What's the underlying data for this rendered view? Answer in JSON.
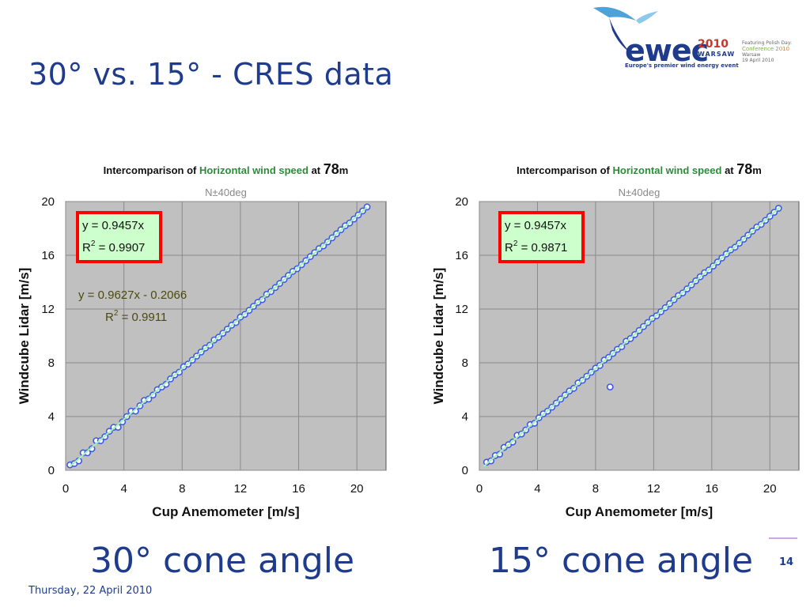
{
  "slide": {
    "title": "30° vs. 15° - CRES data",
    "footer_date": "Thursday, 22 April 2010",
    "page_number": "14"
  },
  "logo": {
    "wordmark": "ewec",
    "year": "2010",
    "city": "WARSAW",
    "tagline": "Europe's premier wind energy event",
    "side_line1": "Featuring Polish Day:",
    "side_conf": "Conference",
    "side_conf_year": "2010",
    "side_place": "Warsaw",
    "side_date": "19 April 2010",
    "brand_color": "#1f3c8c",
    "accent_color": "#c0392b"
  },
  "chart_data": [
    {
      "type": "scatter",
      "title_prefix": "Intercomparison of ",
      "title_highlight": "Horizontal wind speed",
      "title_at": " at ",
      "title_height": "78",
      "title_unit": "m",
      "subtitle": "N±40deg",
      "xlabel": "Cup Anemometer  [m/s]",
      "ylabel": "Windcube Lidar  [m/s]",
      "xlim": [
        0,
        22
      ],
      "ylim": [
        0,
        20
      ],
      "xticks": [
        "0",
        "4",
        "8",
        "12",
        "16",
        "20"
      ],
      "yticks": [
        "0",
        "4",
        "8",
        "12",
        "16",
        "20"
      ],
      "fit_through_origin": {
        "slope": 0.9457,
        "label": "y = 0.9457x",
        "r2_prefix": "R",
        "r2_exp": "2",
        "r2_value": " = 0.9907"
      },
      "fit_linear": {
        "slope": 0.9627,
        "intercept": -0.2066,
        "label": "y = 0.9627x - 0.2066",
        "r2_prefix": "R",
        "r2_exp": "2",
        "r2_value": " = 0.9911"
      },
      "caption": "30° cone angle",
      "series": [
        {
          "x": [
            0.3,
            0.6,
            0.9,
            1.2,
            1.5,
            1.8,
            2.1,
            2.4,
            2.7,
            3.0,
            3.3,
            3.6,
            3.9,
            4.2,
            4.5,
            4.8,
            5.1,
            5.4,
            5.7,
            6.0,
            6.3,
            6.6,
            6.9,
            7.2,
            7.5,
            7.8,
            8.1,
            8.4,
            8.7,
            9.0,
            9.3,
            9.6,
            9.9,
            10.2,
            10.5,
            10.8,
            11.1,
            11.4,
            11.7,
            12.0,
            12.3,
            12.6,
            12.9,
            13.2,
            13.5,
            13.8,
            14.1,
            14.4,
            14.7,
            15.0,
            15.3,
            15.6,
            15.9,
            16.2,
            16.5,
            16.8,
            17.1,
            17.4,
            17.7,
            18.0,
            18.3,
            18.6,
            18.9,
            19.2,
            19.5,
            19.8,
            20.1,
            20.4,
            20.7
          ],
          "y": [
            0.4,
            0.5,
            0.7,
            1.3,
            1.3,
            1.6,
            2.2,
            2.2,
            2.5,
            2.9,
            3.2,
            3.2,
            3.6,
            4.0,
            4.4,
            4.4,
            4.8,
            5.2,
            5.3,
            5.6,
            6.0,
            6.2,
            6.4,
            6.8,
            7.1,
            7.3,
            7.7,
            7.9,
            8.2,
            8.5,
            8.8,
            9.1,
            9.3,
            9.7,
            9.9,
            10.2,
            10.5,
            10.8,
            11.0,
            11.4,
            11.6,
            11.9,
            12.2,
            12.5,
            12.7,
            13.1,
            13.3,
            13.6,
            13.9,
            14.2,
            14.5,
            14.8,
            15.0,
            15.3,
            15.6,
            15.9,
            16.2,
            16.5,
            16.7,
            17.0,
            17.3,
            17.6,
            17.9,
            18.2,
            18.4,
            18.7,
            19.0,
            19.3,
            19.6
          ]
        }
      ]
    },
    {
      "type": "scatter",
      "title_prefix": "Intercomparison of ",
      "title_highlight": "Horizontal wind speed",
      "title_at": " at ",
      "title_height": "78",
      "title_unit": "m",
      "subtitle": "N±40deg",
      "xlabel": "Cup Anemometer  [m/s]",
      "ylabel": "Windcube Lidar  [m/s]",
      "xlim": [
        0,
        22
      ],
      "ylim": [
        0,
        20
      ],
      "xticks": [
        "0",
        "4",
        "8",
        "12",
        "16",
        "20"
      ],
      "yticks": [
        "0",
        "4",
        "8",
        "12",
        "16",
        "20"
      ],
      "fit_through_origin": {
        "slope": 0.9457,
        "label": "y = 0.9457x",
        "r2_prefix": "R",
        "r2_exp": "2",
        "r2_value": " = 0.9871"
      },
      "caption": "15° cone angle",
      "series": [
        {
          "x": [
            0.5,
            0.8,
            1.1,
            1.4,
            1.7,
            2.0,
            2.3,
            2.6,
            2.9,
            3.2,
            3.5,
            3.8,
            4.1,
            4.4,
            4.7,
            5.0,
            5.3,
            5.6,
            5.9,
            6.2,
            6.5,
            6.8,
            7.1,
            7.4,
            7.7,
            8.0,
            8.3,
            8.6,
            8.9,
            9.2,
            9.5,
            9.8,
            10.1,
            10.4,
            10.7,
            11.0,
            11.3,
            11.6,
            11.9,
            12.2,
            12.5,
            12.8,
            13.1,
            13.4,
            13.7,
            14.0,
            14.3,
            14.6,
            14.9,
            15.2,
            15.5,
            15.8,
            16.1,
            16.4,
            16.7,
            17.0,
            17.3,
            17.6,
            17.9,
            18.2,
            18.5,
            18.8,
            19.1,
            19.4,
            19.7,
            20.0,
            20.3,
            20.6,
            9.0
          ],
          "y": [
            0.6,
            0.7,
            1.1,
            1.2,
            1.7,
            1.9,
            2.1,
            2.6,
            2.7,
            3.0,
            3.4,
            3.5,
            3.9,
            4.2,
            4.4,
            4.7,
            5.0,
            5.3,
            5.6,
            5.9,
            6.1,
            6.5,
            6.7,
            7.0,
            7.3,
            7.6,
            7.8,
            8.2,
            8.4,
            8.7,
            9.0,
            9.2,
            9.6,
            9.8,
            10.1,
            10.4,
            10.7,
            11.0,
            11.3,
            11.5,
            11.8,
            12.1,
            12.4,
            12.7,
            13.0,
            13.2,
            13.5,
            13.8,
            14.1,
            14.4,
            14.7,
            14.9,
            15.2,
            15.5,
            15.8,
            16.1,
            16.4,
            16.6,
            16.9,
            17.2,
            17.5,
            17.8,
            18.1,
            18.3,
            18.6,
            18.9,
            19.2,
            19.5,
            6.2
          ]
        }
      ]
    }
  ]
}
